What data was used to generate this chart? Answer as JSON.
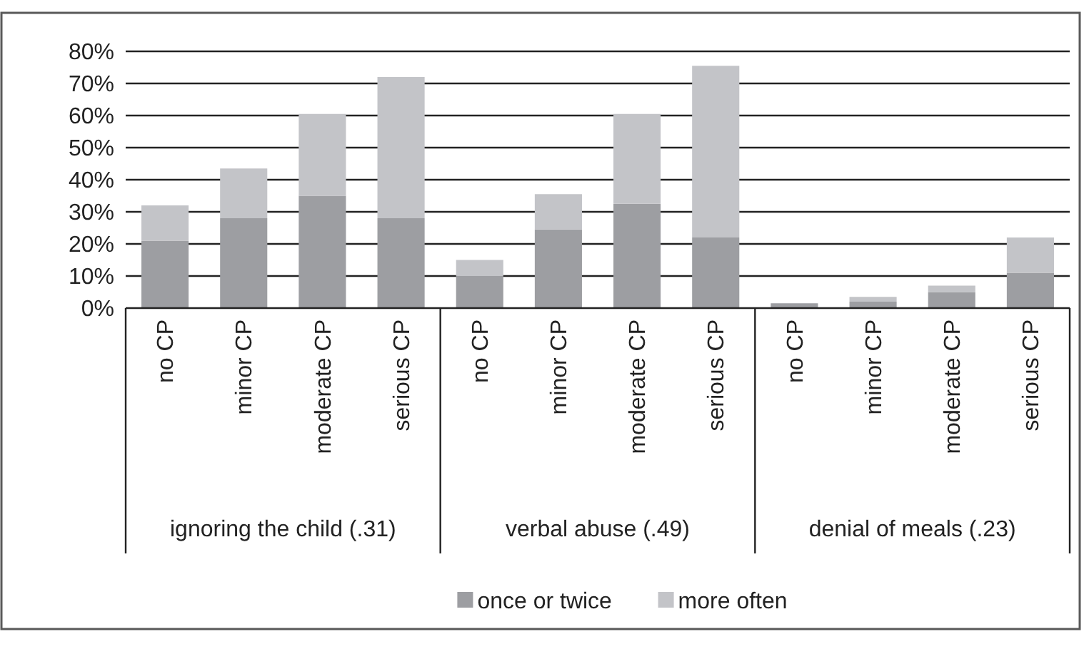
{
  "chart_data": {
    "type": "bar",
    "stacked": true,
    "categories": [
      "no CP",
      "minor CP",
      "moderate CP",
      "serious CP",
      "no CP",
      "minor CP",
      "moderate CP",
      "serious CP",
      "no CP",
      "minor CP",
      "moderate CP",
      "serious CP"
    ],
    "series": [
      {
        "name": "once or twice",
        "color": "#9d9ea2",
        "values": [
          21,
          28,
          35,
          28,
          10,
          24.5,
          32.5,
          22,
          1.5,
          2,
          5,
          11
        ]
      },
      {
        "name": "more often",
        "color": "#c3c4c8",
        "values": [
          11,
          15.5,
          25.5,
          44,
          5,
          11,
          28,
          53.5,
          null,
          1.5,
          2,
          11
        ]
      }
    ],
    "ylim": [
      0,
      80
    ],
    "yticks": [
      {
        "value": 0,
        "label": "0%"
      },
      {
        "value": 10,
        "label": "10%"
      },
      {
        "value": 20,
        "label": "20%"
      },
      {
        "value": 30,
        "label": "30%"
      },
      {
        "value": 40,
        "label": "40%"
      },
      {
        "value": 50,
        "label": "50%"
      },
      {
        "value": 60,
        "label": "60%"
      },
      {
        "value": 70,
        "label": "70%"
      },
      {
        "value": 80,
        "label": "80%"
      }
    ],
    "grid": "y",
    "legend": "bottom",
    "annotations": [
      "ignoring the child (.31)",
      "verbal abuse (.49)",
      "denial of meals (.23)"
    ]
  }
}
